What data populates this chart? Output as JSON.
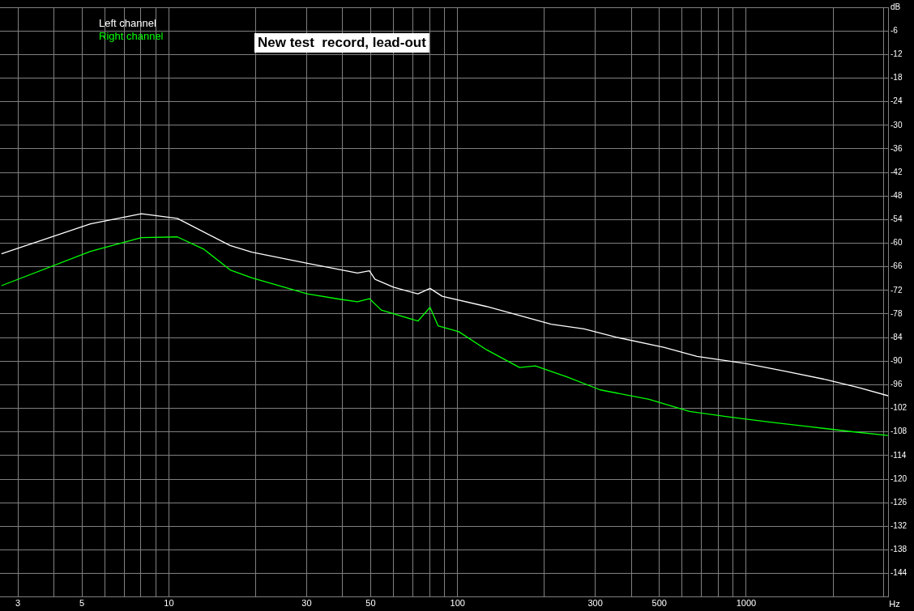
{
  "chart_data": {
    "type": "line",
    "title": "New test  record, lead-out",
    "xlabel": "Hz",
    "log": "x",
    "grid": true,
    "legend": "top left",
    "marker": "none",
    "line_style": "solid",
    "xlim": [
      2.6,
      3100
    ],
    "xticks": [
      3,
      {
        "value": 4,
        "label": null
      },
      5,
      {
        "value": 6,
        "label": null
      },
      {
        "value": 7,
        "label": null
      },
      {
        "value": 8,
        "label": null
      },
      {
        "value": 9,
        "label": null
      },
      10,
      {
        "value": 20,
        "label": null
      },
      30,
      {
        "value": 40,
        "label": null
      },
      50,
      {
        "value": 60,
        "label": null
      },
      {
        "value": 70,
        "label": null
      },
      {
        "value": 80,
        "label": null
      },
      {
        "value": 90,
        "label": null
      },
      100,
      {
        "value": 200,
        "label": null
      },
      300,
      {
        "value": 400,
        "label": null
      },
      500,
      {
        "value": 600,
        "label": null
      },
      {
        "value": 700,
        "label": null
      },
      {
        "value": 800,
        "label": null
      },
      {
        "value": 900,
        "label": null
      },
      1000,
      {
        "value": 2000,
        "label": null
      },
      {
        "value": 3000,
        "label": null
      }
    ],
    "ylim": [
      -150,
      0
    ],
    "yticks": [
      {
        "value": 0,
        "label": "dB"
      },
      -6,
      -12,
      -18,
      -24,
      -30,
      -36,
      -42,
      -48,
      -54,
      -60,
      -66,
      -72,
      -78,
      -84,
      -90,
      -96,
      -102,
      -108,
      -114,
      -120,
      -126,
      -132,
      -138,
      -144
    ],
    "series": [
      {
        "name": "Left channel",
        "color": "#ffffff",
        "x": [
          2.63,
          5.35,
          8.03,
          10.7,
          16.3,
          19.4,
          30.2,
          45,
          49.5,
          51.8,
          60,
          72.9,
          80.3,
          88.5,
          126,
          211,
          274,
          354,
          521,
          675,
          993,
          1371,
          1892,
          2449,
          3100
        ],
        "values": [
          -62.7,
          -55.1,
          -52.5,
          -53.7,
          -60.6,
          -62.3,
          -65.1,
          -67.6,
          -67,
          -69.2,
          -71.2,
          -72.9,
          -71.5,
          -73.5,
          -76.1,
          -80.6,
          -81.8,
          -83.9,
          -86.5,
          -88.8,
          -90.6,
          -92.6,
          -94.7,
          -96.7,
          -98.8
        ]
      },
      {
        "name": "Right channel",
        "color": "#00ff00",
        "x": [
          2.63,
          5.35,
          8.03,
          10.7,
          13.2,
          16.3,
          19.4,
          30.2,
          39.5,
          45,
          49.5,
          54.4,
          72.9,
          80.3,
          85.6,
          101,
          126,
          164,
          186,
          241,
          312,
          460,
          636,
          879,
          1211,
          1669,
          2302,
          3100
        ],
        "values": [
          -70.8,
          -62.1,
          -58.6,
          -58.4,
          -61.5,
          -66.8,
          -68.8,
          -72.9,
          -74.3,
          -74.9,
          -74.1,
          -77,
          -79.8,
          -76.3,
          -81,
          -82.5,
          -87.1,
          -91.6,
          -91.2,
          -94.1,
          -97.3,
          -99.7,
          -102.8,
          -104.2,
          -105.5,
          -106.7,
          -107.9,
          -108.9
        ]
      }
    ]
  }
}
